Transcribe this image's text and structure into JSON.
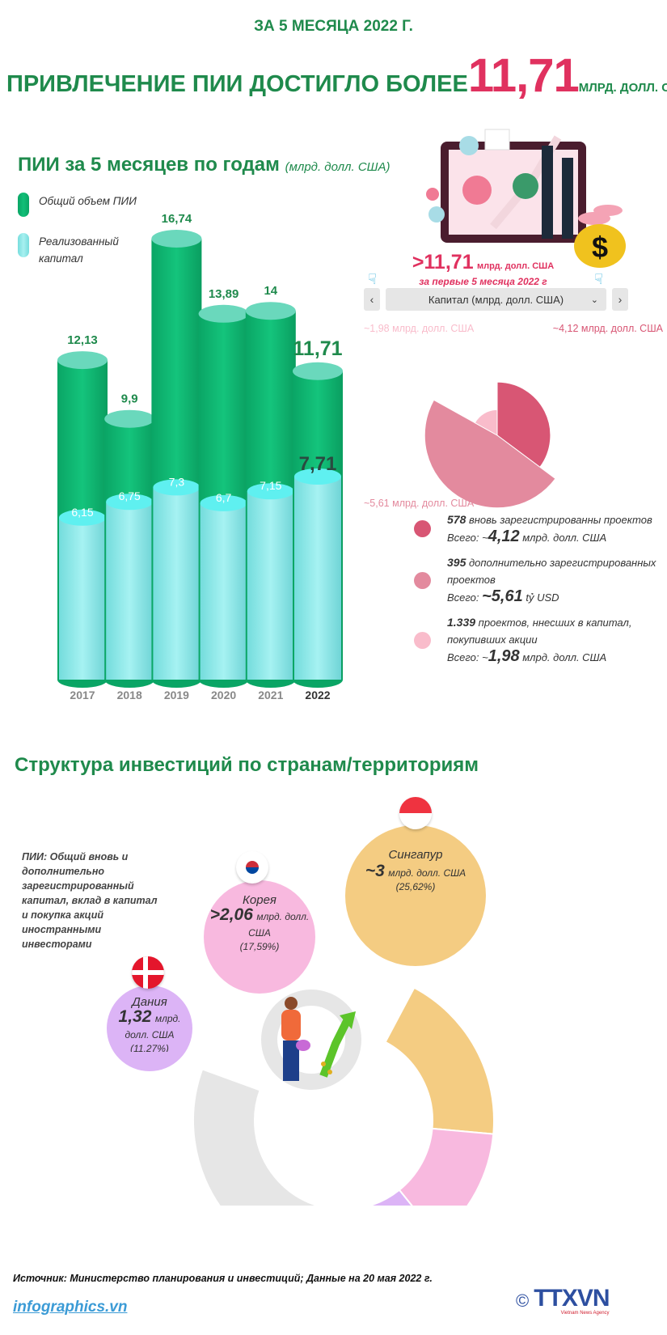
{
  "header": {
    "kicker": "ЗА 5 МЕСЯЦА 2022 Г.",
    "headline_text": "ПРИВЛЕЧЕНИЕ ПИИ ДОСТИГЛО БОЛЕЕ",
    "headline_value": "11,71",
    "headline_unit": "МЛРД. ДОЛЛ. США"
  },
  "section1": {
    "title": "ПИИ за 5 месяцев по годам",
    "unit": "(млрд. долл. США)"
  },
  "colors": {
    "green": "#1f8a4c",
    "accent": "#e0315f",
    "bar_total": "#12bf78",
    "bar_realized": "#86ecec"
  },
  "chart_data": [
    {
      "type": "bar",
      "categories": [
        "2017",
        "2018",
        "2019",
        "2020",
        "2021",
        "2022"
      ],
      "series": [
        {
          "name": "Общий объем ПИИ",
          "values": [
            12.13,
            9.9,
            16.74,
            13.89,
            14,
            11.71
          ],
          "labels": [
            "12,13",
            "9,9",
            "16,74",
            "13,89",
            "14",
            "11,71"
          ]
        },
        {
          "name": "Реализованный капитал",
          "values": [
            6.15,
            6.75,
            7.3,
            6.7,
            7.15,
            7.71
          ],
          "labels": [
            "6,15",
            "6,75",
            "7,3",
            "6,7",
            "7,15",
            "7,71"
          ]
        }
      ],
      "ylim": [
        0,
        17
      ],
      "grid": false,
      "legend": "top-left"
    },
    {
      "type": "pie",
      "variant": "polar-area",
      "title": "Капитал (млрд. долл. США)",
      "slices": [
        {
          "value": 4.12,
          "label": "~4,12 млрд. долл. США",
          "color": "#d85674"
        },
        {
          "value": 5.61,
          "label": "~5,61 млрд. долл. США",
          "color": "#e38a9e"
        },
        {
          "value": 1.98,
          "label": "~1,98 млрд. долл. США",
          "color": "#f9bccb"
        }
      ]
    },
    {
      "type": "pie",
      "variant": "donut",
      "slices": [
        {
          "name": "Сингапур",
          "value": 25.62,
          "color": "#f4cc82"
        },
        {
          "name": "Корея",
          "value": 17.59,
          "color": "#f8b9df"
        },
        {
          "name": "Дания",
          "value": 11.27,
          "color": "#dcb4f6"
        },
        {
          "value": 45.52,
          "color": "#e6e6e6"
        }
      ]
    }
  ],
  "highlight": {
    "value": ">11,71",
    "unit": "млрд. долл. США",
    "subtitle": "за первые 5 месяца 2022 г"
  },
  "selector": {
    "prev": "‹",
    "label": "Капитал (млрд. долл. США)",
    "chevron": "⌄",
    "next": "›"
  },
  "capital_legend": [
    {
      "count": "578",
      "desc": " вновь зарегистрированны проектов",
      "prefix": "Всего: ~",
      "value": "4,12",
      "unit": " млрд. долл. США"
    },
    {
      "count": "395",
      "desc": " дополнительно зарегистрированных проектов",
      "prefix": "Всего: ",
      "value": "~5,61",
      "unit": " tỷ USD"
    },
    {
      "count": "1.339",
      "desc": " проектов, ннесших в капитал, покупивших акции",
      "prefix": "Всего: ~",
      "value": "1,98",
      "unit": " млрд. долл. США"
    }
  ],
  "section2": {
    "title": "Структура инвестиций по странам/территориям",
    "note": "ПИИ: Общий вновь и дополнительно зарегистрированный капитал, вклад в капитал и покупка акций иностранными инвесторами",
    "countries": [
      {
        "name": "Сингапур",
        "value": "~3",
        "unit": "млрд. долл. США",
        "pct": "(25,62%)"
      },
      {
        "name": "Корея",
        "value": ">2,06",
        "unit": "млрд. долл. США",
        "pct": "(17,59%)"
      },
      {
        "name": "Дания",
        "value": "1,32",
        "unit": "млрд. долл. США",
        "pct": "(11,27%)"
      }
    ]
  },
  "footer": {
    "source": "Источник: Министерство планирования и инвестиций; Данные на 20 мая 2022 г.",
    "site": "infographics.vn",
    "logo": "TTXVN",
    "logo_sub": "Vietnam News Agency",
    "copyright": "©"
  }
}
